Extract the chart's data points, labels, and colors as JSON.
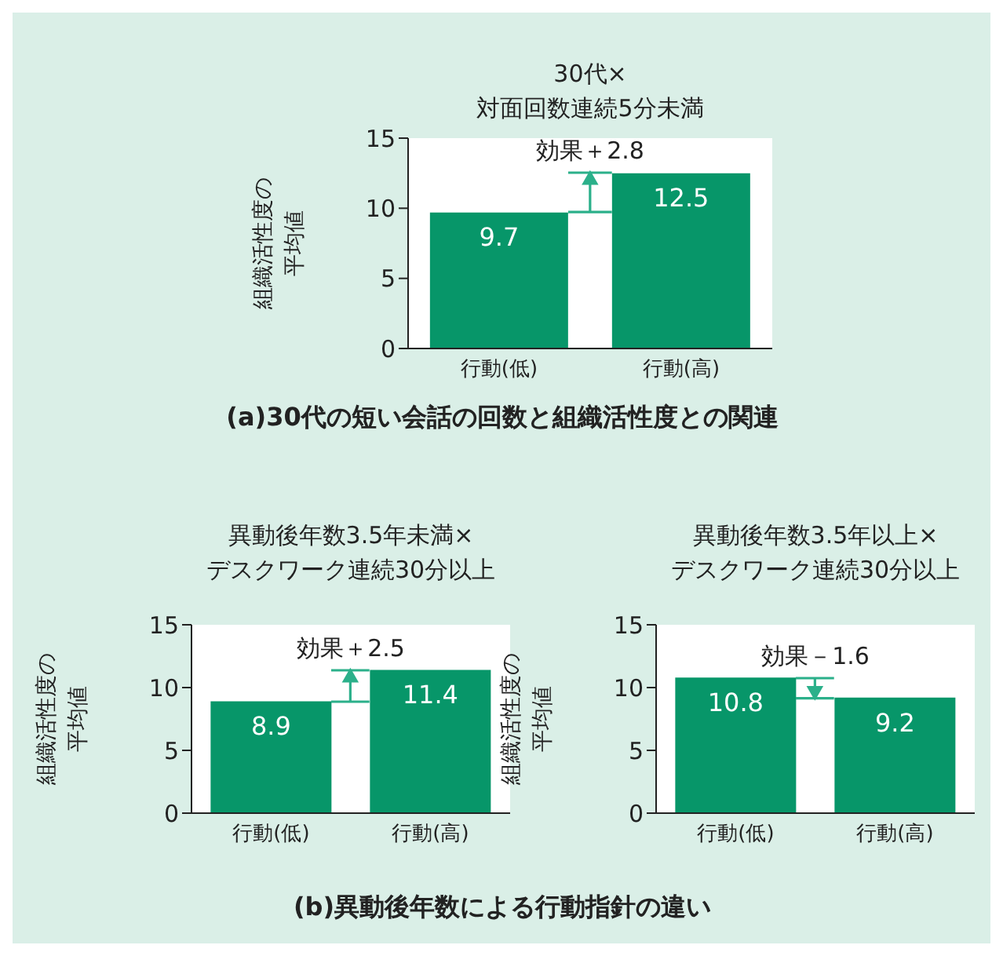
{
  "chart_data": [
    {
      "type": "bar",
      "title": "30代×対面回数連続5分未満",
      "ylabel": "組織活性度の平均値",
      "categories": [
        "行動(低)",
        "行動(高)"
      ],
      "values": [
        9.7,
        12.5
      ],
      "color": "#079669",
      "ylim": [
        0,
        15
      ],
      "yticks": [
        0,
        5,
        10,
        15
      ],
      "data_labels": true,
      "annotations": [
        "効果＋2.8",
        "(a)30代の短い会話の回数と組織活性度との関連"
      ]
    },
    {
      "type": "bar",
      "title": "異動後年数3.5年未満×デスクワーク連続30分以上",
      "ylabel": "組織活性度の平均値",
      "categories": [
        "行動(低)",
        "行動(高)"
      ],
      "values": [
        8.9,
        11.4
      ],
      "color": "#079669",
      "ylim": [
        0,
        15
      ],
      "yticks": [
        0,
        5,
        10,
        15
      ],
      "data_labels": true,
      "annotations": [
        "効果＋2.5",
        "(b)異動後年数による行動指針の違い"
      ]
    },
    {
      "type": "bar",
      "title": "異動後年数3.5年以上×デスクワーク連続30分以上",
      "ylabel": "組織活性度の平均値",
      "categories": [
        "行動(低)",
        "行動(高)"
      ],
      "values": [
        10.8,
        9.2
      ],
      "color": "#079669",
      "ylim": [
        0,
        15
      ],
      "yticks": [
        0,
        5,
        10,
        15
      ],
      "data_labels": true,
      "annotations": [
        "効果－1.6"
      ]
    }
  ]
}
